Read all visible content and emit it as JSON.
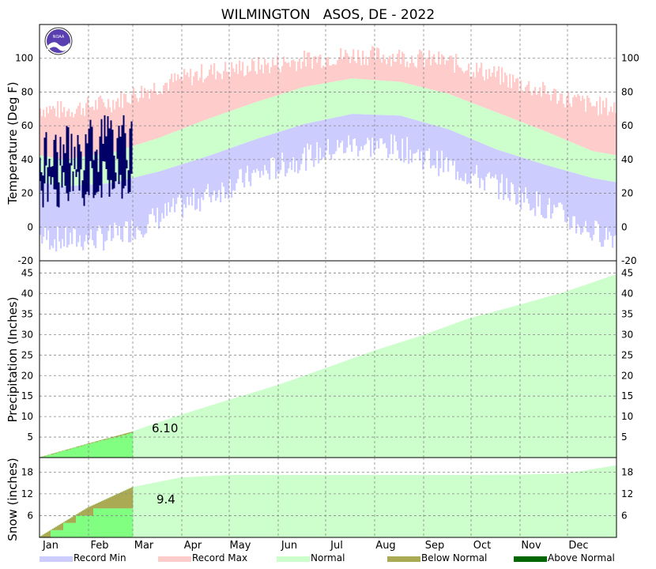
{
  "chart_data": {
    "type": "area",
    "title": "WILMINGTON   ASOS, DE - 2022",
    "months": [
      "Jan",
      "Feb",
      "Mar",
      "Apr",
      "May",
      "Jun",
      "Jul",
      "Aug",
      "Sep",
      "Oct",
      "Nov",
      "Dec"
    ],
    "grid": true,
    "legend_position": "bottom",
    "legend": [
      {
        "label": "Record Min",
        "color": "#ccccff"
      },
      {
        "label": "Record Max",
        "color": "#ffcccc"
      },
      {
        "label": "Normal",
        "color": "#ccffcc"
      },
      {
        "label": "Below Normal",
        "color": "#aaaa55"
      },
      {
        "label": "Above Normal",
        "color": "#006600"
      }
    ],
    "colors": {
      "record_min": "#ccccff",
      "record_max": "#ffcccc",
      "normal": "#ccffcc",
      "observed_temp": "#000066",
      "observed_fill": "#80ff80",
      "below_normal": "#aaaa55",
      "above_normal": "#006600"
    },
    "panels": {
      "temperature": {
        "ylabel": "Temperature (Deg F)",
        "ylim": [
          -20,
          120
        ],
        "ticks": [
          -20,
          0,
          20,
          40,
          60,
          80,
          100
        ],
        "normal_high_monthly": [
          40,
          44,
          53,
          64,
          74,
          83,
          88,
          86,
          79,
          68,
          57,
          45
        ],
        "normal_low_monthly": [
          24,
          26,
          33,
          42,
          52,
          61,
          67,
          66,
          58,
          46,
          37,
          29
        ],
        "record_high_monthly": [
          69,
          74,
          84,
          92,
          95,
          99,
          102,
          101,
          98,
          90,
          80,
          72
        ],
        "record_low_monthly": [
          -8,
          -6,
          6,
          19,
          31,
          41,
          49,
          47,
          36,
          25,
          12,
          -3
        ],
        "observed_high_monthly": [
          43,
          50
        ],
        "observed_low_monthly": [
          24,
          29
        ],
        "observed_days": 59
      },
      "precipitation": {
        "ylabel": "Precipitation (Inches)",
        "ylim": [
          0,
          48
        ],
        "ticks": [
          5,
          10,
          15,
          20,
          25,
          30,
          35,
          40,
          45
        ],
        "normal_cumulative_month_end": [
          3.4,
          6.3,
          10.4,
          14.0,
          17.6,
          21.7,
          26.0,
          29.8,
          34.0,
          37.2,
          40.5,
          44.6
        ],
        "observed_cumulative_month_end": [
          3.4,
          6.1
        ],
        "annotation": "6.10"
      },
      "snow": {
        "ylabel": "Snow (inches)",
        "ylim": [
          0,
          22
        ],
        "ticks": [
          6,
          12,
          18
        ],
        "normal_cumulative_month_end": [
          8.2,
          13.8,
          16.5,
          17.2,
          17.2,
          17.2,
          17.2,
          17.2,
          17.2,
          17.3,
          17.6,
          19.8
        ],
        "observed_cumulative_month_end": [
          7.8,
          9.4
        ],
        "annotation": "9.4"
      }
    }
  }
}
